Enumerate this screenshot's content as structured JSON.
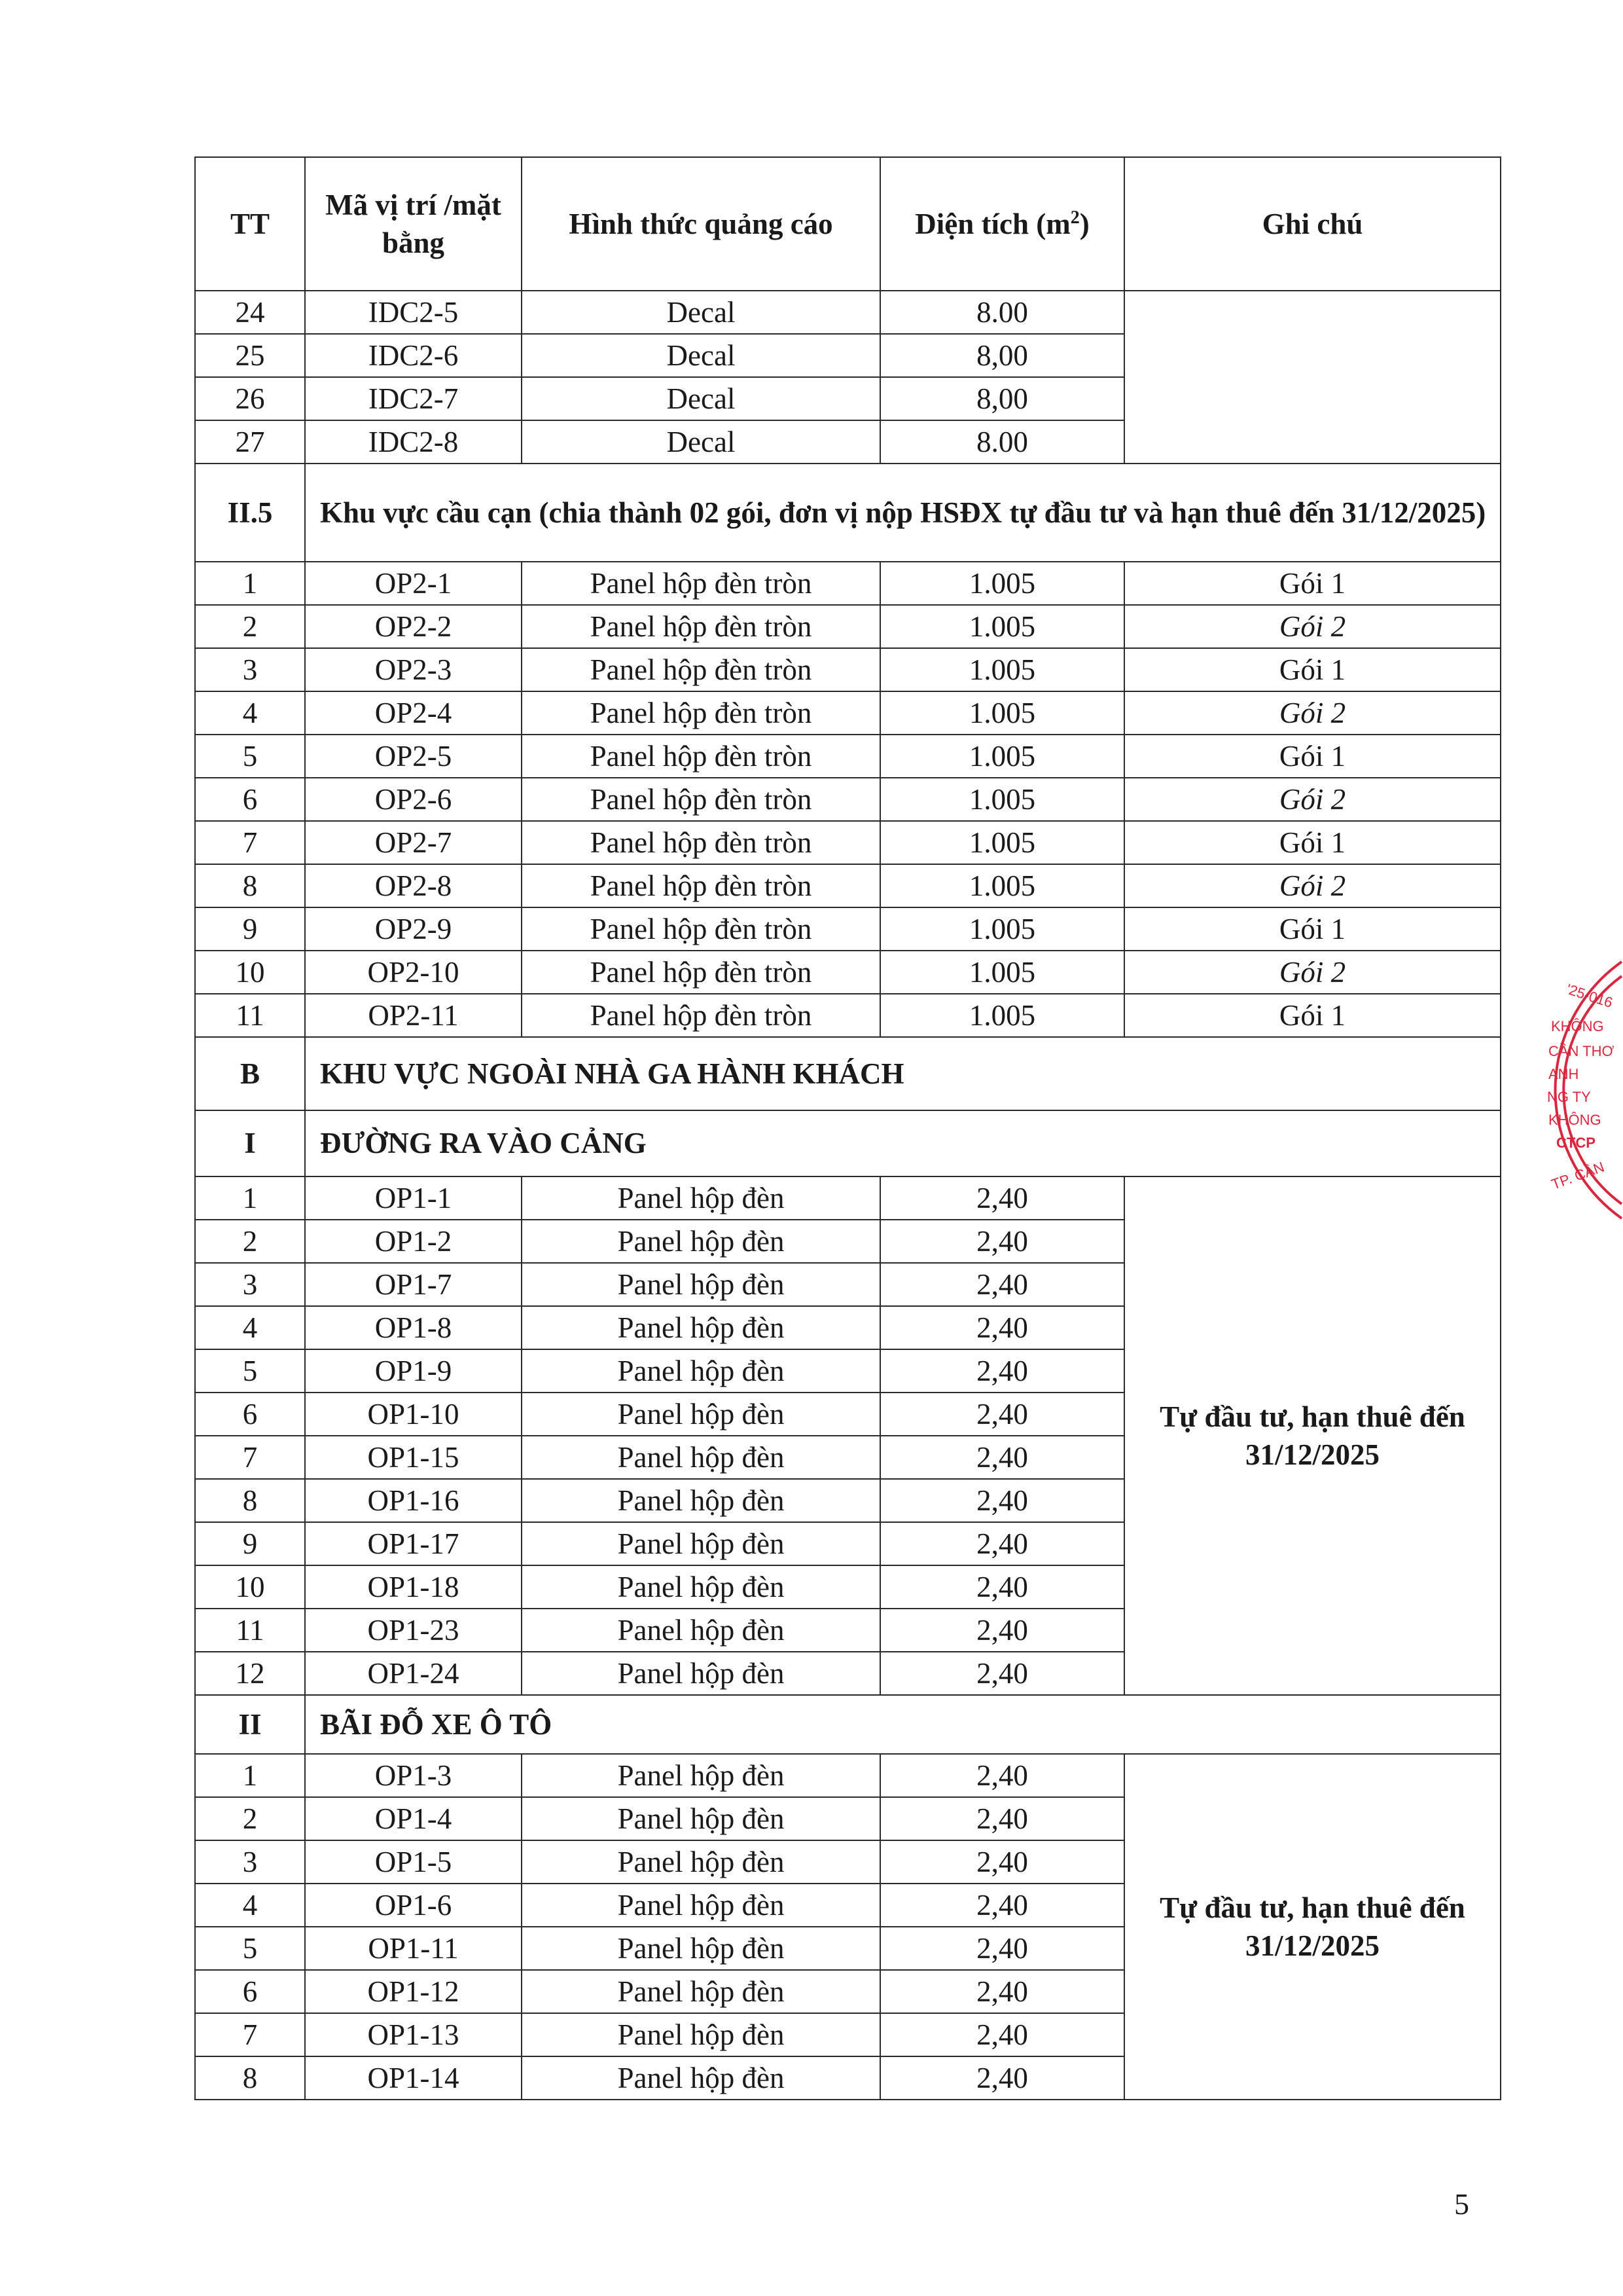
{
  "headers": [
    "TT",
    "Mã vị trí /mặt bằng",
    "Hình thức quảng cáo",
    "Diện tích (m",
    "2",
    ")",
    "Ghi chú"
  ],
  "sections": [
    {
      "code": "",
      "title": "",
      "note": "",
      "rows": [
        [
          "24",
          "IDC2-5",
          "Decal",
          "8.00",
          ""
        ],
        [
          "25",
          "IDC2-6",
          "Decal",
          "8,00",
          ""
        ],
        [
          "26",
          "IDC2-7",
          "Decal",
          "8,00",
          ""
        ],
        [
          "27",
          "IDC2-8",
          "Decal",
          "8.00",
          ""
        ]
      ]
    },
    {
      "code": "II.5",
      "title": "Khu vực cầu cạn (chia thành 02 gói, đơn vị nộp HSĐX tự đầu tư và hạn thuê đến 31/12/2025)",
      "note": null,
      "rows": [
        [
          "1",
          "OP2-1",
          "Panel hộp đèn tròn",
          "1.005",
          "Gói 1"
        ],
        [
          "2",
          "OP2-2",
          "Panel hộp đèn tròn",
          "1.005",
          "Gói 2"
        ],
        [
          "3",
          "OP2-3",
          "Panel hộp đèn tròn",
          "1.005",
          "Gói 1"
        ],
        [
          "4",
          "OP2-4",
          "Panel hộp đèn tròn",
          "1.005",
          "Gói 2"
        ],
        [
          "5",
          "OP2-5",
          "Panel hộp đèn tròn",
          "1.005",
          "Gói 1"
        ],
        [
          "6",
          "OP2-6",
          "Panel hộp đèn tròn",
          "1.005",
          "Gói 2"
        ],
        [
          "7",
          "OP2-7",
          "Panel hộp đèn tròn",
          "1.005",
          "Gói 1"
        ],
        [
          "8",
          "OP2-8",
          "Panel hộp đèn tròn",
          "1.005",
          "Gói 2"
        ],
        [
          "9",
          "OP2-9",
          "Panel hộp đèn tròn",
          "1.005",
          "Gói 1"
        ],
        [
          "10",
          "OP2-10",
          "Panel hộp đèn tròn",
          "1.005",
          "Gói 2"
        ],
        [
          "11",
          "OP2-11",
          "Panel hộp đèn tròn",
          "1.005",
          "Gói 1"
        ]
      ]
    },
    {
      "code": "B",
      "title": "KHU VỰC NGOÀI NHÀ GA HÀNH KHÁCH",
      "note": null,
      "rows": []
    },
    {
      "code": "I",
      "title": "ĐƯỜNG RA VÀO CẢNG",
      "note": "Tự đầu tư, hạn thuê đến 31/12/2025",
      "rows": [
        [
          "1",
          "OP1-1",
          "Panel hộp đèn",
          "2,40"
        ],
        [
          "2",
          "OP1-2",
          "Panel hộp đèn",
          "2,40"
        ],
        [
          "3",
          "OP1-7",
          "Panel hộp đèn",
          "2,40"
        ],
        [
          "4",
          "OP1-8",
          "Panel hộp đèn",
          "2,40"
        ],
        [
          "5",
          "OP1-9",
          "Panel hộp đèn",
          "2,40"
        ],
        [
          "6",
          "OP1-10",
          "Panel hộp đèn",
          "2,40"
        ],
        [
          "7",
          "OP1-15",
          "Panel hộp đèn",
          "2,40"
        ],
        [
          "8",
          "OP1-16",
          "Panel hộp đèn",
          "2,40"
        ],
        [
          "9",
          "OP1-17",
          "Panel hộp đèn",
          "2,40"
        ],
        [
          "10",
          "OP1-18",
          "Panel hộp đèn",
          "2,40"
        ],
        [
          "11",
          "OP1-23",
          "Panel hộp đèn",
          "2,40"
        ],
        [
          "12",
          "OP1-24",
          "Panel hộp đèn",
          "2,40"
        ]
      ]
    },
    {
      "code": "II",
      "title": "BÃI ĐỖ XE Ô TÔ",
      "note": "Tự đầu tư, hạn thuê đến 31/12/2025",
      "rows": [
        [
          "1",
          "OP1-3",
          "Panel hộp đèn",
          "2,40"
        ],
        [
          "2",
          "OP1-4",
          "Panel hộp đèn",
          "2,40"
        ],
        [
          "3",
          "OP1-5",
          "Panel hộp đèn",
          "2,40"
        ],
        [
          "4",
          "OP1-6",
          "Panel hộp đèn",
          "2,40"
        ],
        [
          "5",
          "OP1-11",
          "Panel hộp đèn",
          "2,40"
        ],
        [
          "6",
          "OP1-12",
          "Panel hộp đèn",
          "2,40"
        ],
        [
          "7",
          "OP1-13",
          "Panel hộp đèn",
          "2,40"
        ],
        [
          "8",
          "OP1-14",
          "Panel hộp đèn",
          "2,40"
        ]
      ]
    }
  ],
  "page_number": "5",
  "stamp": {
    "color": "#d8283f",
    "text": [
      "25-016",
      "KHÔNG",
      "CẦN THƠ",
      "ANH",
      "NG TY",
      "KHÔNG",
      "CTCP",
      "TP. CẦN"
    ]
  }
}
